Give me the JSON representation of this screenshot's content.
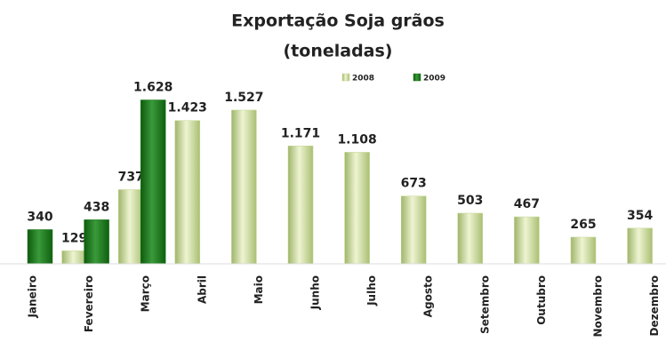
{
  "chart_data": {
    "type": "bar",
    "title": "Exportação  Soja grãos",
    "subtitle": "(toneladas)",
    "categories": [
      "Janeiro",
      "Fevereiro",
      "Março",
      "Abril",
      "Maio",
      "Junho",
      "Julho",
      "Agosto",
      "Setembro",
      "Outubro",
      "Novembro",
      "Dezembro"
    ],
    "series": [
      {
        "name": "2008",
        "color": "#c5d68f",
        "values": [
          null,
          129,
          737,
          1423,
          1527,
          1171,
          1108,
          673,
          503,
          467,
          265,
          354
        ],
        "value_labels": [
          null,
          "129",
          "737",
          "1.423",
          "1.527",
          "1.171",
          "1.108",
          "673",
          "503",
          "467",
          "265",
          "354"
        ]
      },
      {
        "name": "2009",
        "color": "#1f7a1f",
        "values": [
          340,
          438,
          1628,
          null,
          null,
          null,
          null,
          null,
          null,
          null,
          null,
          null
        ],
        "value_labels": [
          "340",
          "438",
          "1.628",
          null,
          null,
          null,
          null,
          null,
          null,
          null,
          null,
          null
        ]
      }
    ],
    "ylim": [
      0,
      1800
    ],
    "legend": "top-right"
  }
}
